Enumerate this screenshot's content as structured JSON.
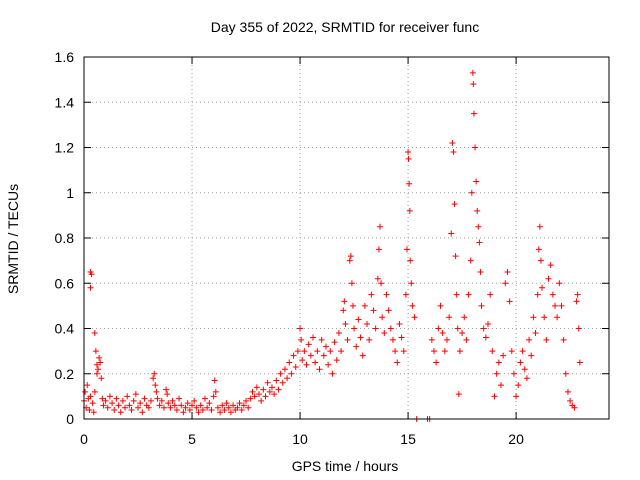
{
  "chart_data": {
    "type": "scatter",
    "title": "Day 355 of 2022, SRMTID for receiver func",
    "xlabel": "GPS time / hours",
    "ylabel": "SRMTID / TECUs",
    "xlim": [
      0,
      24.3
    ],
    "ylim": [
      0,
      1.6
    ],
    "xticks": [
      0,
      5,
      10,
      15,
      20
    ],
    "xtick_labels": [
      "0",
      "5",
      "10",
      "15",
      "20"
    ],
    "yticks": [
      0,
      0.2,
      0.4,
      0.6,
      0.8,
      1.0,
      1.2,
      1.4,
      1.6
    ],
    "ytick_labels": [
      "0",
      "0.2",
      "0.4",
      "0.6",
      "0.8",
      "1",
      "1.2",
      "1.4",
      "1.6"
    ],
    "grid": true,
    "marker": "+",
    "color": "#ff0000",
    "series": [
      {
        "name": "SRMTID",
        "points": [
          [
            0.0,
            0.08
          ],
          [
            0.05,
            0.12
          ],
          [
            0.1,
            0.05
          ],
          [
            0.15,
            0.15
          ],
          [
            0.2,
            0.09
          ],
          [
            0.25,
            0.04
          ],
          [
            0.3,
            0.1
          ],
          [
            0.3,
            0.65
          ],
          [
            0.35,
            0.64
          ],
          [
            0.3,
            0.58
          ],
          [
            0.4,
            0.07
          ],
          [
            0.45,
            0.03
          ],
          [
            0.5,
            0.12
          ],
          [
            0.5,
            0.38
          ],
          [
            0.55,
            0.3
          ],
          [
            0.6,
            0.24
          ],
          [
            0.6,
            0.2
          ],
          [
            0.65,
            0.22
          ],
          [
            0.7,
            0.27
          ],
          [
            0.75,
            0.25
          ],
          [
            0.8,
            0.18
          ],
          [
            0.85,
            0.09
          ],
          [
            0.9,
            0.06
          ],
          [
            1.0,
            0.08
          ],
          [
            1.1,
            0.05
          ],
          [
            1.2,
            0.1
          ],
          [
            1.3,
            0.07
          ],
          [
            1.4,
            0.04
          ],
          [
            1.5,
            0.09
          ],
          [
            1.6,
            0.06
          ],
          [
            1.7,
            0.03
          ],
          [
            1.8,
            0.08
          ],
          [
            1.9,
            0.05
          ],
          [
            2.0,
            0.1
          ],
          [
            2.1,
            0.06
          ],
          [
            2.2,
            0.04
          ],
          [
            2.3,
            0.08
          ],
          [
            2.4,
            0.11
          ],
          [
            2.5,
            0.05
          ],
          [
            2.6,
            0.07
          ],
          [
            2.7,
            0.03
          ],
          [
            2.8,
            0.09
          ],
          [
            2.9,
            0.06
          ],
          [
            3.0,
            0.05
          ],
          [
            3.1,
            0.08
          ],
          [
            3.2,
            0.18
          ],
          [
            3.25,
            0.2
          ],
          [
            3.3,
            0.15
          ],
          [
            3.35,
            0.12
          ],
          [
            3.4,
            0.09
          ],
          [
            3.5,
            0.06
          ],
          [
            3.6,
            0.08
          ],
          [
            3.7,
            0.05
          ],
          [
            3.8,
            0.13
          ],
          [
            3.85,
            0.11
          ],
          [
            3.9,
            0.07
          ],
          [
            4.0,
            0.05
          ],
          [
            4.1,
            0.08
          ],
          [
            4.2,
            0.06
          ],
          [
            4.3,
            0.04
          ],
          [
            4.4,
            0.09
          ],
          [
            4.5,
            0.06
          ],
          [
            4.6,
            0.03
          ],
          [
            4.7,
            0.05
          ],
          [
            4.8,
            0.07
          ],
          [
            4.9,
            0.04
          ],
          [
            5.0,
            0.06
          ],
          [
            5.1,
            0.08
          ],
          [
            5.2,
            0.05
          ],
          [
            5.3,
            0.03
          ],
          [
            5.4,
            0.06
          ],
          [
            5.5,
            0.04
          ],
          [
            5.6,
            0.09
          ],
          [
            5.7,
            0.05
          ],
          [
            5.8,
            0.07
          ],
          [
            5.9,
            0.04
          ],
          [
            6.0,
            0.1
          ],
          [
            6.05,
            0.17
          ],
          [
            6.1,
            0.12
          ],
          [
            6.2,
            0.05
          ],
          [
            6.3,
            0.03
          ],
          [
            6.4,
            0.06
          ],
          [
            6.5,
            0.04
          ],
          [
            6.6,
            0.07
          ],
          [
            6.7,
            0.05
          ],
          [
            6.8,
            0.03
          ],
          [
            6.9,
            0.06
          ],
          [
            7.0,
            0.04
          ],
          [
            7.1,
            0.05
          ],
          [
            7.2,
            0.07
          ],
          [
            7.3,
            0.04
          ],
          [
            7.4,
            0.06
          ],
          [
            7.5,
            0.08
          ],
          [
            7.6,
            0.05
          ],
          [
            7.7,
            0.09
          ],
          [
            7.8,
            0.12
          ],
          [
            7.9,
            0.1
          ],
          [
            8.0,
            0.14
          ],
          [
            8.1,
            0.11
          ],
          [
            8.2,
            0.08
          ],
          [
            8.3,
            0.13
          ],
          [
            8.4,
            0.1
          ],
          [
            8.5,
            0.16
          ],
          [
            8.6,
            0.12
          ],
          [
            8.7,
            0.14
          ],
          [
            8.8,
            0.11
          ],
          [
            8.9,
            0.17
          ],
          [
            9.0,
            0.13
          ],
          [
            9.1,
            0.2
          ],
          [
            9.2,
            0.16
          ],
          [
            9.3,
            0.22
          ],
          [
            9.4,
            0.18
          ],
          [
            9.5,
            0.25
          ],
          [
            9.6,
            0.2
          ],
          [
            9.7,
            0.28
          ],
          [
            9.8,
            0.23
          ],
          [
            9.9,
            0.3
          ],
          [
            10.0,
            0.4
          ],
          [
            10.05,
            0.35
          ],
          [
            10.1,
            0.26
          ],
          [
            10.2,
            0.3
          ],
          [
            10.3,
            0.24
          ],
          [
            10.4,
            0.33
          ],
          [
            10.5,
            0.28
          ],
          [
            10.6,
            0.36
          ],
          [
            10.7,
            0.25
          ],
          [
            10.8,
            0.3
          ],
          [
            10.9,
            0.22
          ],
          [
            11.0,
            0.35
          ],
          [
            11.1,
            0.28
          ],
          [
            11.2,
            0.32
          ],
          [
            11.3,
            0.24
          ],
          [
            11.4,
            0.3
          ],
          [
            11.5,
            0.2
          ],
          [
            11.6,
            0.34
          ],
          [
            11.7,
            0.26
          ],
          [
            11.8,
            0.38
          ],
          [
            11.9,
            0.3
          ],
          [
            12.0,
            0.48
          ],
          [
            12.05,
            0.52
          ],
          [
            12.1,
            0.42
          ],
          [
            12.2,
            0.35
          ],
          [
            12.3,
            0.7
          ],
          [
            12.35,
            0.72
          ],
          [
            12.4,
            0.6
          ],
          [
            12.45,
            0.5
          ],
          [
            12.5,
            0.4
          ],
          [
            12.6,
            0.32
          ],
          [
            12.7,
            0.44
          ],
          [
            12.8,
            0.36
          ],
          [
            12.9,
            0.28
          ],
          [
            13.0,
            0.5
          ],
          [
            13.1,
            0.42
          ],
          [
            13.2,
            0.35
          ],
          [
            13.3,
            0.55
          ],
          [
            13.4,
            0.48
          ],
          [
            13.5,
            0.4
          ],
          [
            13.6,
            0.62
          ],
          [
            13.65,
            0.75
          ],
          [
            13.7,
            0.85
          ],
          [
            13.75,
            0.6
          ],
          [
            13.8,
            0.45
          ],
          [
            13.9,
            0.38
          ],
          [
            14.0,
            0.55
          ],
          [
            14.1,
            0.48
          ],
          [
            14.2,
            0.4
          ],
          [
            14.3,
            0.35
          ],
          [
            14.4,
            0.3
          ],
          [
            14.5,
            0.25
          ],
          [
            14.6,
            0.42
          ],
          [
            14.7,
            0.36
          ],
          [
            14.8,
            0.3
          ],
          [
            14.9,
            0.55
          ],
          [
            14.95,
            0.75
          ],
          [
            15.0,
            1.18
          ],
          [
            15.02,
            1.15
          ],
          [
            15.05,
            1.04
          ],
          [
            15.08,
            0.92
          ],
          [
            15.1,
            0.7
          ],
          [
            15.15,
            0.6
          ],
          [
            15.2,
            0.5
          ],
          [
            15.3,
            0.45
          ],
          [
            15.4,
            0.0
          ],
          [
            15.9,
            0.0
          ],
          [
            16.0,
            0.0
          ],
          [
            16.1,
            0.35
          ],
          [
            16.2,
            0.3
          ],
          [
            16.3,
            0.25
          ],
          [
            16.4,
            0.4
          ],
          [
            16.5,
            0.5
          ],
          [
            16.6,
            0.38
          ],
          [
            16.7,
            0.3
          ],
          [
            16.8,
            0.35
          ],
          [
            16.9,
            0.45
          ],
          [
            17.0,
            0.82
          ],
          [
            17.05,
            1.22
          ],
          [
            17.1,
            1.18
          ],
          [
            17.15,
            0.95
          ],
          [
            17.2,
            0.72
          ],
          [
            17.25,
            0.55
          ],
          [
            17.3,
            0.4
          ],
          [
            17.35,
            0.11
          ],
          [
            17.4,
            0.3
          ],
          [
            17.5,
            0.38
          ],
          [
            17.6,
            0.45
          ],
          [
            17.7,
            0.35
          ],
          [
            17.8,
            0.55
          ],
          [
            17.9,
            0.7
          ],
          [
            17.95,
            1.0
          ],
          [
            18.0,
            1.53
          ],
          [
            18.02,
            1.48
          ],
          [
            18.05,
            1.35
          ],
          [
            18.1,
            1.2
          ],
          [
            18.15,
            1.05
          ],
          [
            18.2,
            0.92
          ],
          [
            18.25,
            0.85
          ],
          [
            18.3,
            0.78
          ],
          [
            18.35,
            0.65
          ],
          [
            18.4,
            0.5
          ],
          [
            18.5,
            0.4
          ],
          [
            18.6,
            0.36
          ],
          [
            18.7,
            0.42
          ],
          [
            18.8,
            0.55
          ],
          [
            18.9,
            0.3
          ],
          [
            19.0,
            0.1
          ],
          [
            19.1,
            0.2
          ],
          [
            19.2,
            0.25
          ],
          [
            19.3,
            0.15
          ],
          [
            19.4,
            0.28
          ],
          [
            19.5,
            0.6
          ],
          [
            19.6,
            0.65
          ],
          [
            19.7,
            0.52
          ],
          [
            19.8,
            0.3
          ],
          [
            19.9,
            0.2
          ],
          [
            20.0,
            0.1
          ],
          [
            20.1,
            0.15
          ],
          [
            20.2,
            0.25
          ],
          [
            20.3,
            0.3
          ],
          [
            20.4,
            0.22
          ],
          [
            20.5,
            0.18
          ],
          [
            20.6,
            0.35
          ],
          [
            20.7,
            0.28
          ],
          [
            20.8,
            0.45
          ],
          [
            20.9,
            0.38
          ],
          [
            21.0,
            0.55
          ],
          [
            21.05,
            0.75
          ],
          [
            21.1,
            0.85
          ],
          [
            21.15,
            0.7
          ],
          [
            21.2,
            0.58
          ],
          [
            21.3,
            0.45
          ],
          [
            21.4,
            0.35
          ],
          [
            21.5,
            0.62
          ],
          [
            21.6,
            0.68
          ],
          [
            21.7,
            0.55
          ],
          [
            21.8,
            0.5
          ],
          [
            21.9,
            0.45
          ],
          [
            22.0,
            0.6
          ],
          [
            22.1,
            0.5
          ],
          [
            22.2,
            0.35
          ],
          [
            22.3,
            0.2
          ],
          [
            22.4,
            0.12
          ],
          [
            22.5,
            0.08
          ],
          [
            22.6,
            0.06
          ],
          [
            22.7,
            0.05
          ],
          [
            22.8,
            0.52
          ],
          [
            22.85,
            0.55
          ],
          [
            22.9,
            0.4
          ],
          [
            22.95,
            0.25
          ]
        ]
      }
    ]
  }
}
